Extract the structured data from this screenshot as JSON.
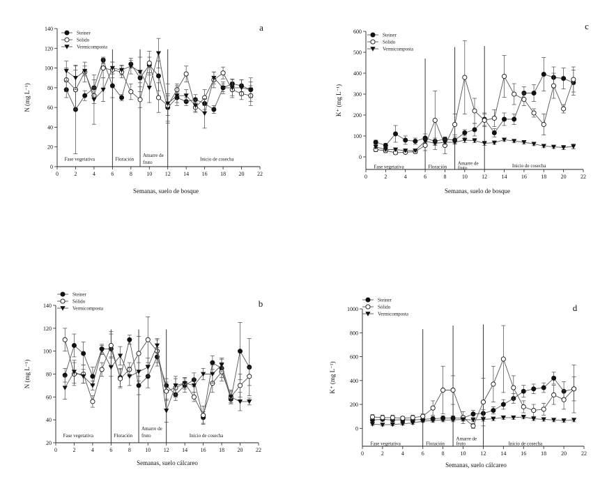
{
  "legend": [
    "Steiner",
    "Sólido",
    "Vermicomposta"
  ],
  "chart_data": [
    {
      "type": "line",
      "panel": "a",
      "xlabel": "Semanas, suelo de bosque",
      "ylabel": "N (mg L⁻¹)",
      "xlim": [
        0,
        22
      ],
      "ylim": [
        0,
        140
      ],
      "xticks": [
        0,
        2,
        4,
        6,
        8,
        10,
        12,
        14,
        16,
        18,
        20,
        22
      ],
      "yticks": [
        0,
        20,
        40,
        60,
        80,
        100,
        120,
        140
      ],
      "phase_lines": [
        6,
        9,
        12
      ],
      "phases": [
        {
          "label": "Fase vegetativa",
          "x": 0.8,
          "y": 6
        },
        {
          "label": "Floración",
          "x": 6.3,
          "y": 6
        },
        {
          "label": "Amarre de",
          "x": 9.3,
          "y": 10
        },
        {
          "label": "fruto",
          "x": 9.3,
          "y": 3
        },
        {
          "label": "Inicio de cosecha",
          "x": 15.5,
          "y": 6
        }
      ],
      "x": [
        1,
        2,
        3,
        4,
        5,
        6,
        7,
        8,
        9,
        10,
        11,
        12,
        13,
        14,
        15,
        16,
        17,
        18,
        19,
        20,
        21
      ],
      "series": [
        {
          "name": "Steiner",
          "marker": "filled-circle",
          "values": [
            78,
            58,
            72,
            80,
            108,
            82,
            70,
            104,
            90,
            103,
            92,
            60,
            70,
            66,
            68,
            64,
            58,
            80,
            84,
            82,
            78
          ],
          "err": [
            8,
            45,
            5,
            8,
            3,
            12,
            3,
            4,
            5,
            8,
            15,
            14,
            5,
            4,
            5,
            6,
            4,
            4,
            5,
            6,
            8
          ]
        },
        {
          "name": "Sólido",
          "marker": "open-circle",
          "values": [
            88,
            78,
            96,
            72,
            100,
            98,
            96,
            76,
            68,
            105,
            70,
            62,
            78,
            94,
            60,
            70,
            88,
            95,
            78,
            74,
            72
          ],
          "err": [
            12,
            20,
            10,
            8,
            10,
            8,
            6,
            8,
            8,
            12,
            15,
            10,
            6,
            8,
            5,
            8,
            8,
            6,
            8,
            6,
            10
          ]
        },
        {
          "name": "Vermicomposta",
          "marker": "filled-triangle-down",
          "values": [
            97,
            90,
            97,
            68,
            78,
            100,
            98,
            102,
            96,
            80,
            115,
            64,
            72,
            72,
            62,
            54,
            90,
            80,
            80,
            80,
            78
          ],
          "err": [
            10,
            12,
            5,
            25,
            12,
            6,
            5,
            8,
            15,
            15,
            15,
            20,
            10,
            6,
            6,
            15,
            6,
            6,
            8,
            8,
            12
          ]
        }
      ]
    },
    {
      "type": "line",
      "panel": "c",
      "xlabel": "Semanas, suelo de bosque",
      "ylabel": "K⁺ (mg L⁻¹)",
      "xlim": [
        0,
        22
      ],
      "ylim": [
        -60,
        600
      ],
      "xticks": [
        0,
        2,
        4,
        6,
        8,
        10,
        12,
        14,
        16,
        18,
        20,
        22
      ],
      "yticks": [
        0,
        100,
        200,
        300,
        400,
        500,
        600
      ],
      "phase_lines": [
        6,
        9,
        12
      ],
      "phase_line_tops": [
        470,
        525,
        530
      ],
      "phases": [
        {
          "label": "Fase vegetativa",
          "x": 0.8,
          "y": -55
        },
        {
          "label": "Floración",
          "x": 6.3,
          "y": -55
        },
        {
          "label": "Amarre de",
          "x": 9.3,
          "y": -38
        },
        {
          "label": "fruto",
          "x": 9.3,
          "y": -60
        },
        {
          "label": "Inicio de cosecha",
          "x": 14.8,
          "y": -50
        }
      ],
      "x": [
        1,
        2,
        3,
        4,
        5,
        6,
        7,
        8,
        9,
        10,
        11,
        12,
        13,
        14,
        15,
        16,
        17,
        18,
        19,
        20,
        21
      ],
      "series": [
        {
          "name": "Steiner",
          "marker": "filled-circle",
          "values": [
            70,
            55,
            110,
            80,
            75,
            90,
            75,
            85,
            80,
            115,
            130,
            180,
            115,
            180,
            180,
            305,
            305,
            395,
            380,
            375,
            355
          ],
          "err": [
            10,
            10,
            40,
            20,
            15,
            20,
            15,
            10,
            15,
            15,
            30,
            30,
            20,
            30,
            25,
            30,
            40,
            80,
            50,
            50,
            60
          ]
        },
        {
          "name": "Sólido",
          "marker": "open-circle",
          "values": [
            35,
            30,
            20,
            22,
            25,
            55,
            175,
            55,
            155,
            380,
            220,
            175,
            185,
            385,
            300,
            275,
            210,
            155,
            340,
            230,
            370
          ],
          "err": [
            10,
            10,
            8,
            8,
            8,
            25,
            140,
            40,
            50,
            175,
            60,
            30,
            40,
            100,
            50,
            30,
            20,
            50,
            60,
            20,
            60
          ]
        },
        {
          "name": "Vermicomposta",
          "marker": "filled-triangle-down",
          "values": [
            48,
            35,
            35,
            30,
            30,
            75,
            65,
            70,
            70,
            80,
            78,
            65,
            68,
            82,
            76,
            70,
            62,
            52,
            48,
            45,
            50
          ],
          "err": [
            8,
            6,
            6,
            6,
            6,
            10,
            10,
            10,
            10,
            12,
            10,
            10,
            8,
            8,
            8,
            8,
            8,
            8,
            8,
            10,
            12
          ]
        }
      ]
    },
    {
      "type": "line",
      "panel": "b",
      "xlabel": "Semanas, suelo cálcareo",
      "ylabel": "N (mg L⁻¹)",
      "xlim": [
        0,
        22
      ],
      "ylim": [
        20,
        140
      ],
      "xticks": [
        0,
        2,
        4,
        6,
        8,
        10,
        12,
        14,
        16,
        18,
        20,
        22
      ],
      "yticks": [
        20,
        40,
        60,
        80,
        100,
        120,
        140
      ],
      "phase_lines": [
        6,
        9,
        12
      ],
      "phases": [
        {
          "label": "Fase vegetativa",
          "x": 0.8,
          "y": 25
        },
        {
          "label": "Floración",
          "x": 6.3,
          "y": 25
        },
        {
          "label": "Amarre de",
          "x": 9.3,
          "y": 31
        },
        {
          "label": "fruto",
          "x": 9.3,
          "y": 25
        },
        {
          "label": "Inicio de cosecha",
          "x": 14.5,
          "y": 25
        }
      ],
      "x": [
        1,
        2,
        3,
        4,
        5,
        6,
        7,
        8,
        9,
        10,
        11,
        12,
        13,
        14,
        15,
        16,
        17,
        18,
        19,
        20,
        21
      ],
      "series": [
        {
          "name": "Steiner",
          "marker": "filled-circle",
          "values": [
            79,
            105,
            98,
            78,
            102,
            102,
            77,
            110,
            70,
            78,
            95,
            70,
            62,
            70,
            75,
            42,
            90,
            85,
            58,
            100,
            86
          ],
          "err": [
            6,
            10,
            10,
            8,
            4,
            15,
            8,
            4,
            8,
            10,
            8,
            6,
            5,
            6,
            6,
            5,
            6,
            8,
            4,
            25,
            25
          ]
        },
        {
          "name": "Sólido",
          "marker": "open-circle",
          "values": [
            110,
            80,
            80,
            56,
            84,
            105,
            76,
            84,
            98,
            110,
            100,
            65,
            68,
            72,
            60,
            44,
            72,
            82,
            60,
            70,
            78
          ],
          "err": [
            10,
            10,
            8,
            5,
            6,
            10,
            8,
            6,
            15,
            20,
            10,
            8,
            8,
            5,
            4,
            8,
            8,
            8,
            6,
            10,
            8
          ]
        },
        {
          "name": "Vermicomposta",
          "marker": "filled-triangle-down",
          "values": [
            68,
            82,
            78,
            70,
            101,
            86,
            96,
            78,
            82,
            86,
            105,
            48,
            70,
            72,
            70,
            80,
            80,
            88,
            60,
            56,
            56
          ],
          "err": [
            10,
            10,
            6,
            4,
            4,
            8,
            8,
            8,
            8,
            8,
            6,
            10,
            8,
            5,
            6,
            5,
            8,
            6,
            5,
            8,
            3
          ]
        }
      ]
    },
    {
      "type": "line",
      "panel": "d",
      "xlabel": "Semanas, suelo cálcareo",
      "ylabel": "K⁺ (mg L⁻¹)",
      "xlim": [
        0,
        22
      ],
      "ylim": [
        -150,
        1000
      ],
      "xticks": [
        0,
        2,
        4,
        6,
        8,
        10,
        12,
        14,
        16,
        18,
        20,
        22
      ],
      "yticks": [
        0,
        200,
        400,
        600,
        800,
        1000
      ],
      "phase_lines": [
        6,
        9,
        12
      ],
      "phase_line_tops": [
        830,
        860,
        870
      ],
      "phases": [
        {
          "label": "Fase vegetativa",
          "x": 0.8,
          "y": -140
        },
        {
          "label": "Floración",
          "x": 6.3,
          "y": -140
        },
        {
          "label": "Amarre de",
          "x": 9.3,
          "y": -100
        },
        {
          "label": "fruto",
          "x": 9.3,
          "y": -140
        },
        {
          "label": "Inicio de cosecha",
          "x": 14.5,
          "y": -140
        }
      ],
      "x": [
        1,
        2,
        3,
        4,
        5,
        6,
        7,
        8,
        9,
        10,
        11,
        12,
        13,
        14,
        15,
        16,
        17,
        18,
        19,
        20,
        21
      ],
      "series": [
        {
          "name": "Steiner",
          "marker": "filled-circle",
          "values": [
            70,
            75,
            70,
            72,
            70,
            75,
            80,
            85,
            85,
            85,
            120,
            125,
            150,
            200,
            250,
            310,
            330,
            340,
            420,
            310,
            330
          ],
          "err": [
            20,
            15,
            15,
            15,
            15,
            20,
            20,
            20,
            20,
            20,
            30,
            30,
            30,
            40,
            40,
            50,
            40,
            40,
            50,
            80,
            200
          ]
        },
        {
          "name": "Sólido",
          "marker": "open-circle",
          "values": [
            95,
            90,
            90,
            85,
            90,
            100,
            170,
            320,
            320,
            90,
            20,
            220,
            370,
            580,
            340,
            180,
            150,
            160,
            280,
            240,
            330
          ],
          "err": [
            20,
            20,
            20,
            15,
            20,
            20,
            60,
            200,
            120,
            50,
            20,
            200,
            150,
            280,
            100,
            50,
            50,
            50,
            80,
            80,
            100
          ]
        },
        {
          "name": "Vermicomposta",
          "marker": "filled-triangle-down",
          "values": [
            35,
            30,
            32,
            38,
            45,
            60,
            65,
            70,
            70,
            75,
            70,
            75,
            80,
            90,
            90,
            95,
            80,
            75,
            70,
            65,
            70
          ],
          "err": [
            10,
            10,
            10,
            10,
            10,
            10,
            15,
            15,
            15,
            15,
            15,
            15,
            15,
            15,
            15,
            15,
            15,
            15,
            15,
            15,
            15
          ]
        }
      ]
    }
  ]
}
